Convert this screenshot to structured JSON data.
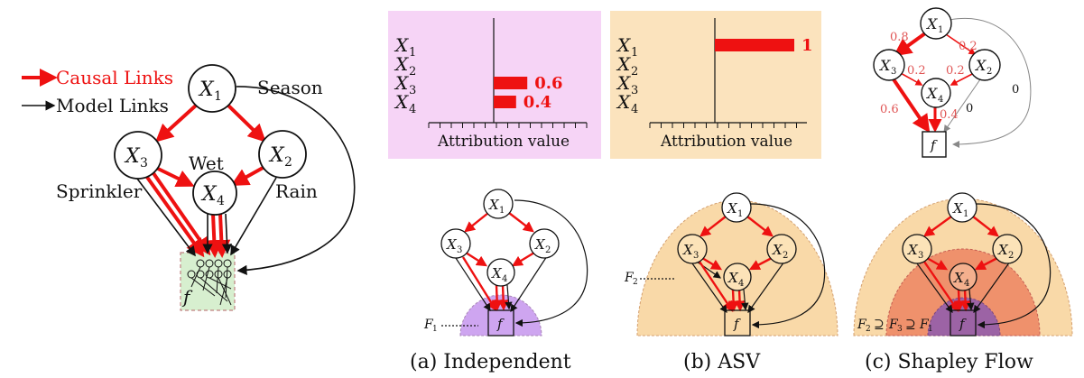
{
  "colors": {
    "red": "#ee1111",
    "black": "#111111",
    "gray": "#888888",
    "pink_bg": "#f6d4f6",
    "orange_bg": "#fbe3bd",
    "green_box": "#d7efcf",
    "purple_region": "#c99cef",
    "orange_region": "#f5c98e",
    "red_region": "#ef8a66"
  },
  "legend": {
    "causal_links": "Causal Links",
    "model_links": "Model Links"
  },
  "main_graph": {
    "nodes": {
      "x1": "X",
      "x1_sub": "1",
      "x2": "X",
      "x2_sub": "2",
      "x3": "X",
      "x3_sub": "3",
      "x4": "X",
      "x4_sub": "4",
      "f": "f"
    },
    "labels": {
      "season": "Season",
      "wet": "Wet",
      "sprinkler": "Sprinkler",
      "rain": "Rain"
    }
  },
  "chart_data": [
    {
      "type": "bar",
      "orientation": "horizontal",
      "title": "",
      "categories": [
        "X1",
        "X2",
        "X3",
        "X4"
      ],
      "values": [
        0,
        0,
        0.6,
        0.4
      ],
      "value_labels": [
        "",
        "",
        "0.6",
        "0.4"
      ],
      "xlabel": "Attribution value",
      "xlim": [
        -0.8,
        1.1
      ],
      "grid": false
    },
    {
      "type": "bar",
      "orientation": "horizontal",
      "title": "",
      "categories": [
        "X1",
        "X2",
        "X3",
        "X4"
      ],
      "values": [
        1,
        0,
        0,
        0
      ],
      "value_labels": [
        "1",
        "",
        "",
        ""
      ],
      "xlabel": "Attribution value",
      "xlim": [
        -0.8,
        1.1
      ],
      "grid": false
    }
  ],
  "flow_graph": {
    "edge_labels": {
      "x1_x3": "0.8",
      "x1_x2": "0.2",
      "x3_x4": "0.2",
      "x2_x4": "0.2",
      "x3_f": "0.6",
      "x4_f": "0.4",
      "x2_f": "0",
      "x1_f": "0"
    }
  },
  "panels": {
    "a_caption": "(a) Independent",
    "b_caption": "(b) ASV",
    "c_caption": "(c) Shapley Flow",
    "f1_label": "F",
    "f1_sub": "1",
    "f2_label": "F",
    "f2_sub": "2",
    "c_set_label": {
      "f2": "F",
      "f2_sub": "2",
      "sup1": "⊇",
      "f3": "F",
      "f3_sub": "3",
      "sup2": "⊇",
      "f1": "F",
      "f1_sub": "1"
    }
  }
}
